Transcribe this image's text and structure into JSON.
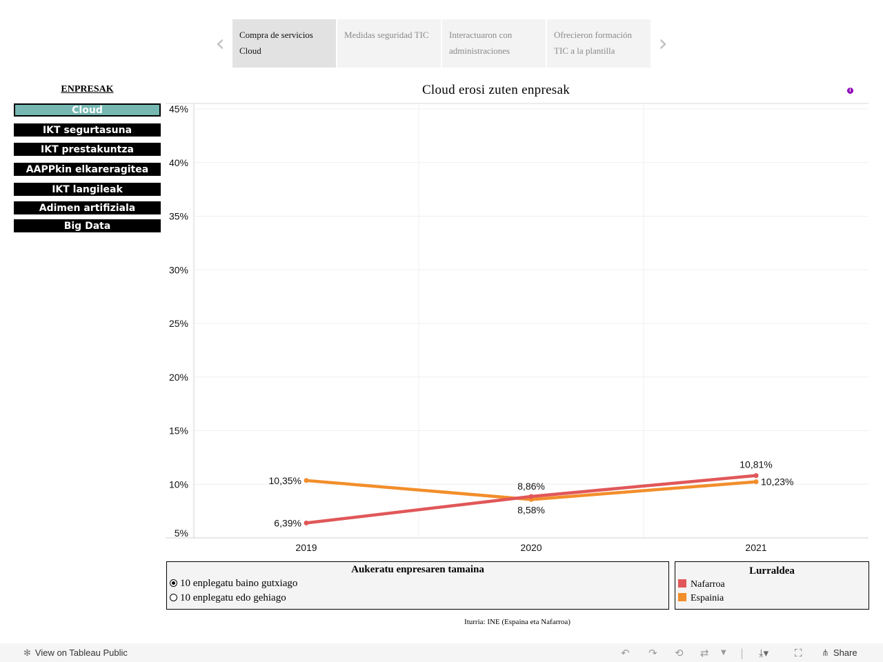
{
  "story": {
    "tabs": [
      {
        "label": "Compra de servicios Cloud",
        "active": true
      },
      {
        "label": "Medidas seguridad TIC",
        "active": false
      },
      {
        "label": "Interactuaron con administraciones",
        "active": false
      },
      {
        "label": "Ofrecieron formación TIC a la plantilla",
        "active": false
      }
    ],
    "prev_icon": "chevron-left-icon",
    "next_icon": "chevron-right-icon"
  },
  "sidebar": {
    "title": "ENPRESAK",
    "items": [
      {
        "label": "Cloud",
        "active": true
      },
      {
        "label": "IKT segurtasuna",
        "active": false
      },
      {
        "label": "IKT prestakuntza",
        "active": false
      },
      {
        "label": "AAPPkin elkareragitea",
        "active": false
      },
      {
        "label": "IKT langileak",
        "active": false
      },
      {
        "label": "Adimen artifiziala",
        "active": false
      },
      {
        "label": "Big Data",
        "active": false
      }
    ],
    "active_color": "#76b7b2"
  },
  "info_icon": "info-icon",
  "chart_data": {
    "type": "line",
    "title": "Cloud erosi zuten enpresak",
    "categories": [
      "2019",
      "2020",
      "2021"
    ],
    "series": [
      {
        "name": "Nafarroa",
        "color": "#e15759",
        "values": [
          6.39,
          8.86,
          10.81
        ],
        "labels": [
          "6,39%",
          "8,86%",
          "10,81%"
        ]
      },
      {
        "name": "Espainia",
        "color": "#f28e2b",
        "values": [
          10.35,
          8.58,
          10.23
        ],
        "labels": [
          "10,35%",
          "8,58%",
          "10,23%"
        ]
      }
    ],
    "yticks": [
      5,
      10,
      15,
      20,
      25,
      30,
      35,
      40,
      45
    ],
    "ytick_labels": [
      "5%",
      "10%",
      "15%",
      "20%",
      "25%",
      "30%",
      "35%",
      "40%",
      "45%"
    ],
    "ylim": [
      5,
      45
    ],
    "xlabel": "",
    "ylabel": "",
    "grid": true
  },
  "size_filter": {
    "title": "Aukeratu enpresaren tamaina",
    "options": [
      {
        "label": "10 enplegatu baino gutxiago",
        "selected": true
      },
      {
        "label": "10 enplegatu edo gehiago",
        "selected": false
      }
    ]
  },
  "legend": {
    "title": "Lurraldea",
    "items": [
      {
        "label": "Nafarroa",
        "color": "#e15759"
      },
      {
        "label": "Espainia",
        "color": "#f28e2b"
      }
    ]
  },
  "source": "Iturria: INE (Espaina eta Nafarroa)",
  "footer": {
    "view_label": "View on Tableau Public",
    "share_label": "Share",
    "icons": [
      "tableau-icon",
      "undo-icon",
      "redo-icon",
      "revert-icon",
      "refresh-icon",
      "download-icon",
      "fullscreen-icon",
      "share-icon"
    ]
  }
}
